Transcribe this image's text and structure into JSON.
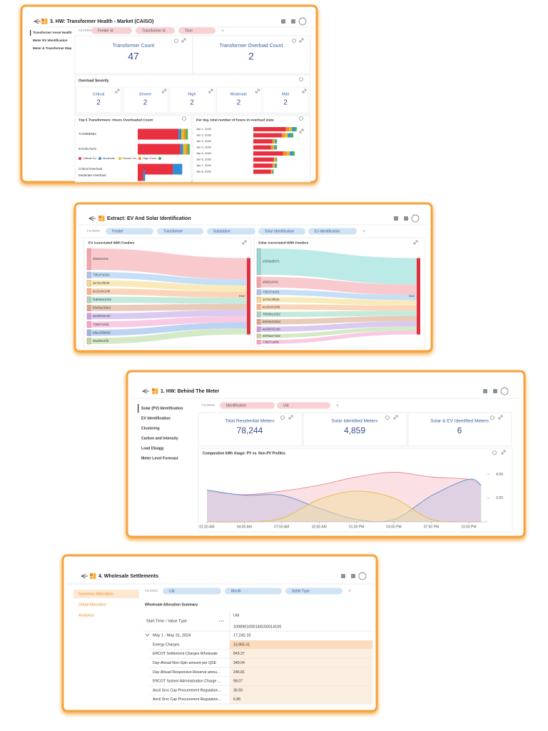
{
  "card1": {
    "title": "3. HW: Transformer Health - Market (CAISO)",
    "nav": [
      "Transformer Asset Health",
      "Meter EV Identification",
      "Meter & Transformer Map"
    ],
    "filters_label": "FILTERS",
    "filters": [
      "Feeder Id",
      "Transformer Id",
      "Time"
    ],
    "kpis": [
      {
        "label": "Transformer Count",
        "value": "47"
      },
      {
        "label": "Transformer Overload Count",
        "value": "2"
      }
    ],
    "severity": {
      "title": "Overload Severity",
      "items": [
        {
          "label": "Critical",
          "value": "2"
        },
        {
          "label": "Severe",
          "value": "2"
        },
        {
          "label": "High",
          "value": "2"
        },
        {
          "label": "Moderate",
          "value": "2"
        },
        {
          "label": "Mild",
          "value": "2"
        }
      ]
    },
    "top5": {
      "type": "bar",
      "orientation": "horizontal",
      "stacked": true,
      "title": "Top 5 Transformers: Hours Overloaded Count",
      "categories": [
        "7c4496b584",
        "67478c7a73",
        "Critical Overload",
        "Moderate Overload"
      ],
      "series": [
        {
          "name": "Critical Ov...",
          "color": "#e8303f",
          "values": [
            44,
            46,
            38,
            6
          ]
        },
        {
          "name": "Moderate ...",
          "color": "#2e8fd6",
          "values": [
            3,
            3,
            10,
            2
          ]
        },
        {
          "name": "Severe Ov...",
          "color": "#e8b923",
          "values": [
            3,
            3,
            0,
            0
          ]
        },
        {
          "name": "High Overl...",
          "color": "#f28b30",
          "values": [
            2,
            2,
            0,
            0
          ]
        },
        {
          "name": null,
          "color": "#3bb54a",
          "values": [
            2,
            2,
            0,
            0
          ]
        }
      ]
    },
    "per_day": {
      "type": "bar",
      "orientation": "horizontal",
      "stacked": true,
      "title": "Per day, total number of hours in overload state",
      "categories": [
        "Jan 1, 2020",
        "Jan 2, 2020",
        "Jan 3, 2020",
        "Jan 4, 2020",
        "Jan 5, 2020",
        "Jan 6, 2020",
        "Jan 7, 2020",
        "Jan 8, 2020"
      ],
      "series": [
        {
          "color": "#e8303f",
          "values": [
            48,
            42,
            28,
            26,
            44,
            30,
            28,
            26
          ]
        },
        {
          "color": "#f28b30",
          "values": [
            5,
            4,
            2,
            3,
            5,
            1,
            2,
            1
          ]
        },
        {
          "color": "#e8b923",
          "values": [
            4,
            5,
            2,
            2,
            5,
            2,
            2,
            1
          ]
        },
        {
          "color": "#2e8fd6",
          "values": [
            4,
            4,
            2,
            2,
            4,
            1,
            2,
            1
          ]
        },
        {
          "color": "#3bb54a",
          "values": [
            3,
            4,
            1,
            2,
            3,
            1,
            1,
            1
          ]
        }
      ]
    }
  },
  "card2": {
    "title": "Extract: EV And Solar Identification",
    "filters_label": "FILTERS",
    "filters": [
      "Feeder",
      "Transformer",
      "Substation",
      "Solar Identification",
      "Ev Identification"
    ],
    "ev": {
      "type": "sankey",
      "title": "EV Associated With Feeders",
      "target": "true",
      "nodes": [
        "d0d01043c",
        "73f107e201",
        "2e75c3f526",
        "ac16c0c24b",
        "f16b65e1c52",
        "60e5a23da3",
        "ae39042ceb",
        "73967cefdc",
        "e6ec25bb60",
        "65af08cbf0"
      ],
      "values": [
        7,
        2,
        2,
        2,
        2,
        2,
        2,
        2,
        2,
        2
      ],
      "colors": [
        "#f4a6ab",
        "#9fc9f0",
        "#f5dc8a",
        "#f6b98a",
        "#9edcc5",
        "#d8a98a",
        "#c3a6e6",
        "#f4a6d0",
        "#8fb6ec",
        "#b8dca0"
      ]
    },
    "solar": {
      "type": "sankey",
      "title": "Solar Associated With Feeders",
      "target": "true",
      "nodes": [
        "2555a6f371",
        "d0d01043c",
        "73f107e201",
        "2e75c3f526",
        "ac16c0c24b",
        "7b689e1652",
        "60e5a23da3",
        "ae39042ceb",
        "4975ae733e",
        "73607cefdc"
      ],
      "values": [
        10,
        4,
        2,
        2,
        2,
        2,
        2,
        2,
        1.5,
        1.5
      ],
      "colors": [
        "#8fdcd6",
        "#f4a6ab",
        "#9fc9f0",
        "#f5dc8a",
        "#f6b98a",
        "#9edcc5",
        "#d8a98a",
        "#c3a6e6",
        "#b8dca0",
        "#f4a6d0"
      ]
    }
  },
  "card3": {
    "title": "1. HW: Behind The Meter",
    "nav": [
      "Solar (PV) Identification",
      "EV Identification",
      "Clustering",
      "Carbon and Intensity",
      "Load Disagg",
      "Meter Level Forecast"
    ],
    "filters_label": "FILTERS",
    "filters": [
      "Identification",
      "Uid"
    ],
    "kpis": [
      {
        "label": "Total Residential Meters",
        "value": "78,244"
      },
      {
        "label": "Solar Identified Meters",
        "value": "4,859"
      },
      {
        "label": "Solar & EV Identified Meters",
        "value": "6"
      }
    ],
    "chart": {
      "type": "area",
      "title": "Comparative kWh Usage: PV vs. Non-PV Profiles",
      "x": [
        1,
        4,
        7,
        10,
        13,
        16,
        19,
        22,
        23
      ],
      "xlim": [
        1,
        23.5
      ],
      "xticks": [
        {
          "value": 1,
          "label": "01:00 AM"
        },
        {
          "value": 4,
          "label": "04:00 AM"
        },
        {
          "value": 7,
          "label": "07:00 AM"
        },
        {
          "value": 10,
          "label": "10:00 AM"
        },
        {
          "value": 13,
          "label": "01:00 PM"
        },
        {
          "value": 16,
          "label": "04:00 PM"
        },
        {
          "value": 19,
          "label": "07:00 PM"
        },
        {
          "value": 22,
          "label": "10:00 PM"
        }
      ],
      "ylim": [
        0,
        5.5
      ],
      "yticks": [
        {
          "value": 2,
          "label": "2.00"
        },
        {
          "value": 4,
          "label": "4.00"
        }
      ],
      "series": [
        {
          "color": "#e88a93",
          "fill": "#f8c8cc",
          "values": [
            2.6,
            2.3,
            2.6,
            3.1,
            3.8,
            4.2,
            3.8,
            3.6,
            3.1
          ]
        },
        {
          "color": "#5b8fd6",
          "fill": "#c9c4e0",
          "values": [
            2.7,
            2.25,
            2.25,
            1.15,
            0.2,
            0.2,
            2.2,
            3.6,
            3.1
          ]
        },
        {
          "color": "#e8b84a",
          "fill": "#f3dfa5",
          "values": [
            0,
            0,
            0.3,
            1.9,
            2.6,
            2.0,
            0.2,
            0,
            0
          ]
        }
      ]
    }
  },
  "card4": {
    "title": "4. Wholesale Settlements",
    "nav": [
      "Summary Allocation",
      "Detail Allocation",
      "Analytics"
    ],
    "filters_label": "FILTERS",
    "filters": [
      "Uid",
      "Month",
      "Settle Type"
    ],
    "table": {
      "title": "Wholesale Allocation Summary",
      "row_header": "Start Time › Value Type",
      "column_header": "Uid",
      "column": "1008901000148150014100",
      "group": {
        "label": "May 1 - May 31, 2024",
        "value": "17,242.10"
      },
      "rows": [
        [
          "Energy Charges",
          "15,955.31"
        ],
        [
          "ERCOT Settlement Charges Wholesale",
          "843.37"
        ],
        [
          "Day-Ahead Non-Spin amount per QSE",
          "349.04"
        ],
        [
          "Day-Ahead Responsive-Reserve amou...",
          "246.81"
        ],
        [
          "ERCOT System Administration Charge ...",
          "98.07"
        ],
        [
          "Ancil Srvc Cap Procurement Regulation...",
          "36.93"
        ],
        [
          "Ancil Srvc Cap Procurement Regulation...",
          "6.86"
        ]
      ]
    }
  }
}
